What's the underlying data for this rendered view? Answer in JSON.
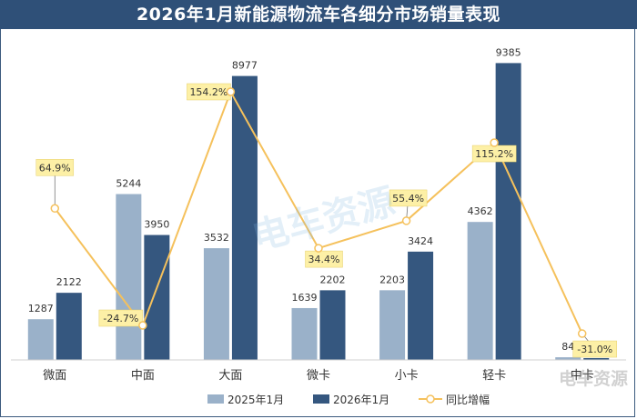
{
  "chart_data": {
    "type": "bar",
    "title": "2026年1月新能源物流车各细分市场销量表现",
    "categories": [
      "微面",
      "中面",
      "大面",
      "微卡",
      "小卡",
      "轻卡",
      "中卡"
    ],
    "series": [
      {
        "name": "2025年1月",
        "values": [
          1287,
          5244,
          3532,
          1639,
          2203,
          4362,
          84
        ],
        "color": "#9ab1c9"
      },
      {
        "name": "2026年1月",
        "values": [
          2122,
          3950,
          8977,
          2202,
          3424,
          9385,
          58
        ],
        "color": "#35577f"
      }
    ],
    "line_series": {
      "name": "同比增幅",
      "values": [
        64.9,
        -24.7,
        154.2,
        34.4,
        55.4,
        115.2,
        -31.0
      ],
      "labels": [
        "64.9%",
        "-24.7%",
        "154.2%",
        "34.4%",
        "55.4%",
        "115.2%",
        "-31.0%"
      ],
      "color": "#f5c15c"
    },
    "bar_ylim": [
      0,
      10000
    ],
    "line_ylim": [
      -40,
      160
    ],
    "legend_position": "bottom",
    "grid": false
  },
  "watermark": {
    "center_text": "电车资源",
    "corner_text": "电车资源"
  }
}
